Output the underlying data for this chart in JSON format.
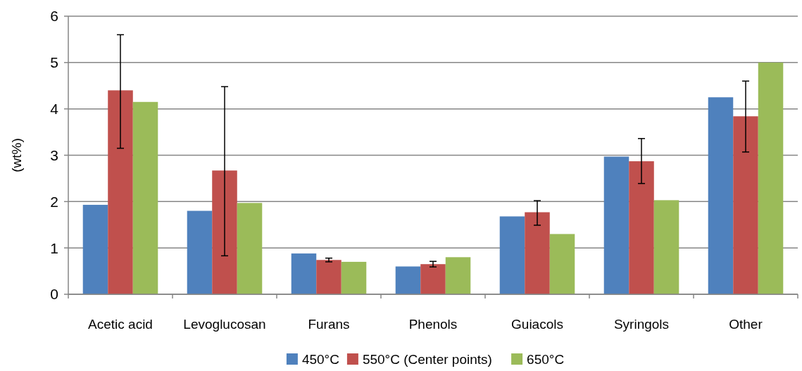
{
  "chart_data": {
    "type": "bar",
    "ylabel": "(wt%)",
    "categories": [
      "Acetic acid",
      "Levoglucosan",
      "Furans",
      "Phenols",
      "Guiacols",
      "Syringols",
      "Other"
    ],
    "series": [
      {
        "name": "450°C",
        "color": "#4f81bd",
        "values": [
          1.93,
          1.8,
          0.88,
          0.6,
          1.68,
          2.97,
          4.25
        ]
      },
      {
        "name": "550°C (Center points)",
        "color": "#c0504d",
        "values": [
          4.4,
          2.67,
          0.74,
          0.65,
          1.77,
          2.87,
          3.84
        ],
        "errors": [
          [
            3.15,
            5.6
          ],
          [
            0.83,
            4.48
          ],
          [
            0.7,
            0.78
          ],
          [
            0.59,
            0.71
          ],
          [
            1.49,
            2.02
          ],
          [
            2.39,
            3.36
          ],
          [
            3.07,
            4.6
          ]
        ]
      },
      {
        "name": "650°C",
        "color": "#9bbb59",
        "values": [
          4.15,
          1.97,
          0.7,
          0.8,
          1.3,
          2.03,
          5.0
        ]
      }
    ],
    "ylim": [
      0,
      6
    ],
    "yticks": [
      0,
      1,
      2,
      3,
      4,
      5,
      6
    ],
    "grid": "y",
    "legend": "bottom"
  }
}
